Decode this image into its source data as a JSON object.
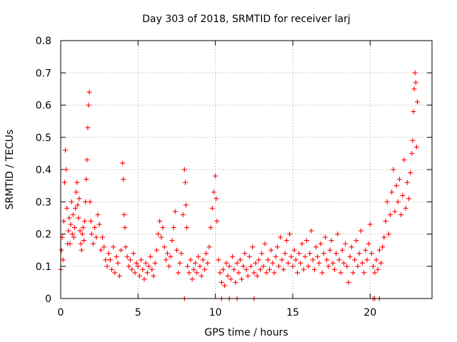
{
  "chart_data": {
    "type": "scatter",
    "title": "Day 303 of 2018, SRMTID for receiver larj",
    "xlabel": "GPS time / hours",
    "ylabel": "SRMTID / TECUs",
    "xlim": [
      0,
      24
    ],
    "ylim": [
      0,
      0.8
    ],
    "xticks": [
      0,
      5,
      10,
      15,
      20
    ],
    "xtick_labels": [
      "0",
      "5",
      "10",
      "15",
      "20"
    ],
    "yticks": [
      0,
      0.1,
      0.2,
      0.3,
      0.4,
      0.5,
      0.6,
      0.7,
      0.8
    ],
    "ytick_labels": [
      "0",
      "0.1",
      "0.2",
      "0.3",
      "0.4",
      "0.5",
      "0.6",
      "0.7",
      "0.8"
    ],
    "grid": true,
    "marker": "+",
    "color": "#ff0000",
    "series": [
      {
        "name": "SRMTID",
        "points": [
          [
            0.0,
            0.09
          ],
          [
            0.05,
            0.15
          ],
          [
            0.1,
            0.19
          ],
          [
            0.15,
            0.12
          ],
          [
            0.2,
            0.24
          ],
          [
            0.25,
            0.36
          ],
          [
            0.3,
            0.46
          ],
          [
            0.35,
            0.4
          ],
          [
            0.4,
            0.28
          ],
          [
            0.45,
            0.17
          ],
          [
            0.5,
            0.21
          ],
          [
            0.55,
            0.25
          ],
          [
            0.6,
            0.17
          ],
          [
            0.65,
            0.23
          ],
          [
            0.7,
            0.3
          ],
          [
            0.75,
            0.2
          ],
          [
            0.8,
            0.26
          ],
          [
            0.85,
            0.19
          ],
          [
            0.9,
            0.22
          ],
          [
            0.95,
            0.28
          ],
          [
            1.0,
            0.33
          ],
          [
            1.05,
            0.36
          ],
          [
            1.1,
            0.29
          ],
          [
            1.15,
            0.25
          ],
          [
            1.2,
            0.31
          ],
          [
            1.25,
            0.21
          ],
          [
            1.3,
            0.17
          ],
          [
            1.35,
            0.15
          ],
          [
            1.4,
            0.2
          ],
          [
            1.45,
            0.22
          ],
          [
            1.5,
            0.18
          ],
          [
            1.55,
            0.24
          ],
          [
            1.6,
            0.3
          ],
          [
            1.65,
            0.37
          ],
          [
            1.7,
            0.43
          ],
          [
            1.75,
            0.53
          ],
          [
            1.8,
            0.6
          ],
          [
            1.85,
            0.64
          ],
          [
            1.9,
            0.3
          ],
          [
            1.95,
            0.24
          ],
          [
            2.0,
            0.2
          ],
          [
            2.1,
            0.17
          ],
          [
            2.2,
            0.22
          ],
          [
            2.3,
            0.19
          ],
          [
            2.4,
            0.26
          ],
          [
            2.5,
            0.23
          ],
          [
            2.6,
            0.15
          ],
          [
            2.7,
            0.19
          ],
          [
            2.8,
            0.16
          ],
          [
            2.9,
            0.12
          ],
          [
            3.0,
            0.1
          ],
          [
            3.1,
            0.14
          ],
          [
            3.2,
            0.12
          ],
          [
            3.3,
            0.09
          ],
          [
            3.4,
            0.16
          ],
          [
            3.5,
            0.08
          ],
          [
            3.6,
            0.13
          ],
          [
            3.7,
            0.11
          ],
          [
            3.8,
            0.07
          ],
          [
            3.9,
            0.15
          ],
          [
            4.0,
            0.42
          ],
          [
            4.05,
            0.37
          ],
          [
            4.1,
            0.26
          ],
          [
            4.15,
            0.22
          ],
          [
            4.2,
            0.16
          ],
          [
            4.3,
            0.13
          ],
          [
            4.4,
            0.1
          ],
          [
            4.5,
            0.12
          ],
          [
            4.6,
            0.09
          ],
          [
            4.7,
            0.14
          ],
          [
            4.8,
            0.08
          ],
          [
            4.9,
            0.11
          ],
          [
            5.0,
            0.1
          ],
          [
            5.1,
            0.07
          ],
          [
            5.2,
            0.12
          ],
          [
            5.3,
            0.09
          ],
          [
            5.4,
            0.06
          ],
          [
            5.5,
            0.11
          ],
          [
            5.6,
            0.08
          ],
          [
            5.7,
            0.1
          ],
          [
            5.8,
            0.13
          ],
          [
            5.9,
            0.09
          ],
          [
            6.0,
            0.07
          ],
          [
            6.1,
            0.11
          ],
          [
            6.2,
            0.15
          ],
          [
            6.3,
            0.2
          ],
          [
            6.4,
            0.24
          ],
          [
            6.5,
            0.19
          ],
          [
            6.6,
            0.22
          ],
          [
            6.7,
            0.16
          ],
          [
            6.8,
            0.12
          ],
          [
            6.9,
            0.14
          ],
          [
            7.0,
            0.1
          ],
          [
            7.1,
            0.13
          ],
          [
            7.2,
            0.18
          ],
          [
            7.3,
            0.22
          ],
          [
            7.4,
            0.27
          ],
          [
            7.5,
            0.15
          ],
          [
            7.6,
            0.08
          ],
          [
            7.7,
            0.11
          ],
          [
            7.8,
            0.14
          ],
          [
            7.9,
            0.26
          ],
          [
            8.0,
            0.4
          ],
          [
            8.05,
            0.36
          ],
          [
            8.1,
            0.29
          ],
          [
            8.15,
            0.22
          ],
          [
            8.2,
            0.1
          ],
          [
            8.3,
            0.08
          ],
          [
            8.4,
            0.12
          ],
          [
            8.5,
            0.06
          ],
          [
            8.6,
            0.09
          ],
          [
            8.7,
            0.11
          ],
          [
            8.8,
            0.08
          ],
          [
            8.9,
            0.13
          ],
          [
            9.0,
            0.1
          ],
          [
            9.1,
            0.07
          ],
          [
            9.2,
            0.12
          ],
          [
            9.3,
            0.09
          ],
          [
            9.4,
            0.14
          ],
          [
            9.5,
            0.11
          ],
          [
            9.6,
            0.16
          ],
          [
            9.7,
            0.22
          ],
          [
            9.8,
            0.28
          ],
          [
            9.9,
            0.33
          ],
          [
            10.0,
            0.38
          ],
          [
            10.05,
            0.31
          ],
          [
            10.1,
            0.24
          ],
          [
            10.2,
            0.12
          ],
          [
            10.3,
            0.08
          ],
          [
            10.4,
            0.05
          ],
          [
            10.5,
            0.09
          ],
          [
            10.6,
            0.04
          ],
          [
            10.7,
            0.11
          ],
          [
            10.8,
            0.07
          ],
          [
            10.9,
            0.1
          ],
          [
            11.0,
            0.06
          ],
          [
            11.1,
            0.13
          ],
          [
            11.2,
            0.09
          ],
          [
            11.3,
            0.05
          ],
          [
            11.4,
            0.11
          ],
          [
            11.5,
            0.08
          ],
          [
            11.6,
            0.12
          ],
          [
            11.7,
            0.06
          ],
          [
            11.8,
            0.1
          ],
          [
            11.9,
            0.14
          ],
          [
            12.0,
            0.09
          ],
          [
            12.1,
            0.07
          ],
          [
            12.2,
            0.13
          ],
          [
            12.3,
            0.1
          ],
          [
            12.4,
            0.16
          ],
          [
            12.5,
            0.08
          ],
          [
            12.6,
            0.11
          ],
          [
            12.7,
            0.07
          ],
          [
            12.8,
            0.12
          ],
          [
            12.9,
            0.09
          ],
          [
            13.0,
            0.14
          ],
          [
            13.1,
            0.1
          ],
          [
            13.2,
            0.17
          ],
          [
            13.3,
            0.08
          ],
          [
            13.4,
            0.12
          ],
          [
            13.5,
            0.09
          ],
          [
            13.6,
            0.15
          ],
          [
            13.7,
            0.11
          ],
          [
            13.8,
            0.08
          ],
          [
            13.9,
            0.13
          ],
          [
            14.0,
            0.16
          ],
          [
            14.1,
            0.1
          ],
          [
            14.2,
            0.19
          ],
          [
            14.3,
            0.12
          ],
          [
            14.4,
            0.09
          ],
          [
            14.5,
            0.14
          ],
          [
            14.6,
            0.18
          ],
          [
            14.7,
            0.11
          ],
          [
            14.8,
            0.2
          ],
          [
            14.9,
            0.13
          ],
          [
            15.0,
            0.1
          ],
          [
            15.1,
            0.15
          ],
          [
            15.2,
            0.12
          ],
          [
            15.3,
            0.08
          ],
          [
            15.4,
            0.14
          ],
          [
            15.5,
            0.11
          ],
          [
            15.6,
            0.17
          ],
          [
            15.7,
            0.09
          ],
          [
            15.8,
            0.13
          ],
          [
            15.9,
            0.18
          ],
          [
            16.0,
            0.1
          ],
          [
            16.1,
            0.14
          ],
          [
            16.2,
            0.21
          ],
          [
            16.3,
            0.12
          ],
          [
            16.4,
            0.09
          ],
          [
            16.5,
            0.16
          ],
          [
            16.6,
            0.13
          ],
          [
            16.7,
            0.11
          ],
          [
            16.8,
            0.17
          ],
          [
            16.9,
            0.08
          ],
          [
            17.0,
            0.14
          ],
          [
            17.1,
            0.19
          ],
          [
            17.2,
            0.12
          ],
          [
            17.3,
            0.1
          ],
          [
            17.4,
            0.15
          ],
          [
            17.5,
            0.18
          ],
          [
            17.6,
            0.11
          ],
          [
            17.7,
            0.09
          ],
          [
            17.8,
            0.14
          ],
          [
            17.9,
            0.2
          ],
          [
            18.0,
            0.12
          ],
          [
            18.1,
            0.08
          ],
          [
            18.2,
            0.15
          ],
          [
            18.3,
            0.11
          ],
          [
            18.4,
            0.17
          ],
          [
            18.5,
            0.1
          ],
          [
            18.6,
            0.05
          ],
          [
            18.7,
            0.13
          ],
          [
            18.8,
            0.16
          ],
          [
            18.9,
            0.08
          ],
          [
            19.0,
            0.12
          ],
          [
            19.1,
            0.18
          ],
          [
            19.2,
            0.1
          ],
          [
            19.3,
            0.14
          ],
          [
            19.4,
            0.21
          ],
          [
            19.5,
            0.11
          ],
          [
            19.6,
            0.08
          ],
          [
            19.7,
            0.15
          ],
          [
            19.8,
            0.12
          ],
          [
            19.9,
            0.17
          ],
          [
            20.0,
            0.23
          ],
          [
            20.1,
            0.14
          ],
          [
            20.2,
            0.1
          ],
          [
            20.3,
            0.08
          ],
          [
            20.4,
            0.12
          ],
          [
            20.5,
            0.09
          ],
          [
            20.6,
            0.15
          ],
          [
            20.7,
            0.11
          ],
          [
            20.8,
            0.16
          ],
          [
            20.9,
            0.19
          ],
          [
            21.0,
            0.24
          ],
          [
            21.1,
            0.3
          ],
          [
            21.2,
            0.2
          ],
          [
            21.3,
            0.26
          ],
          [
            21.4,
            0.33
          ],
          [
            21.5,
            0.4
          ],
          [
            21.6,
            0.27
          ],
          [
            21.7,
            0.35
          ],
          [
            21.8,
            0.3
          ],
          [
            21.9,
            0.37
          ],
          [
            22.0,
            0.26
          ],
          [
            22.1,
            0.32
          ],
          [
            22.2,
            0.43
          ],
          [
            22.3,
            0.28
          ],
          [
            22.4,
            0.36
          ],
          [
            22.5,
            0.31
          ],
          [
            22.6,
            0.39
          ],
          [
            22.7,
            0.45
          ],
          [
            22.75,
            0.49
          ],
          [
            22.8,
            0.58
          ],
          [
            22.85,
            0.65
          ],
          [
            22.9,
            0.7
          ],
          [
            22.95,
            0.67
          ],
          [
            23.0,
            0.47
          ],
          [
            23.05,
            0.61
          ],
          [
            10.4,
            0.0
          ],
          [
            10.9,
            0.0
          ],
          [
            11.4,
            0.0
          ],
          [
            12.5,
            0.0
          ],
          [
            8.0,
            0.0
          ],
          [
            20.2,
            0.0
          ],
          [
            20.3,
            0.0
          ],
          [
            20.6,
            0.0
          ]
        ]
      }
    ]
  }
}
